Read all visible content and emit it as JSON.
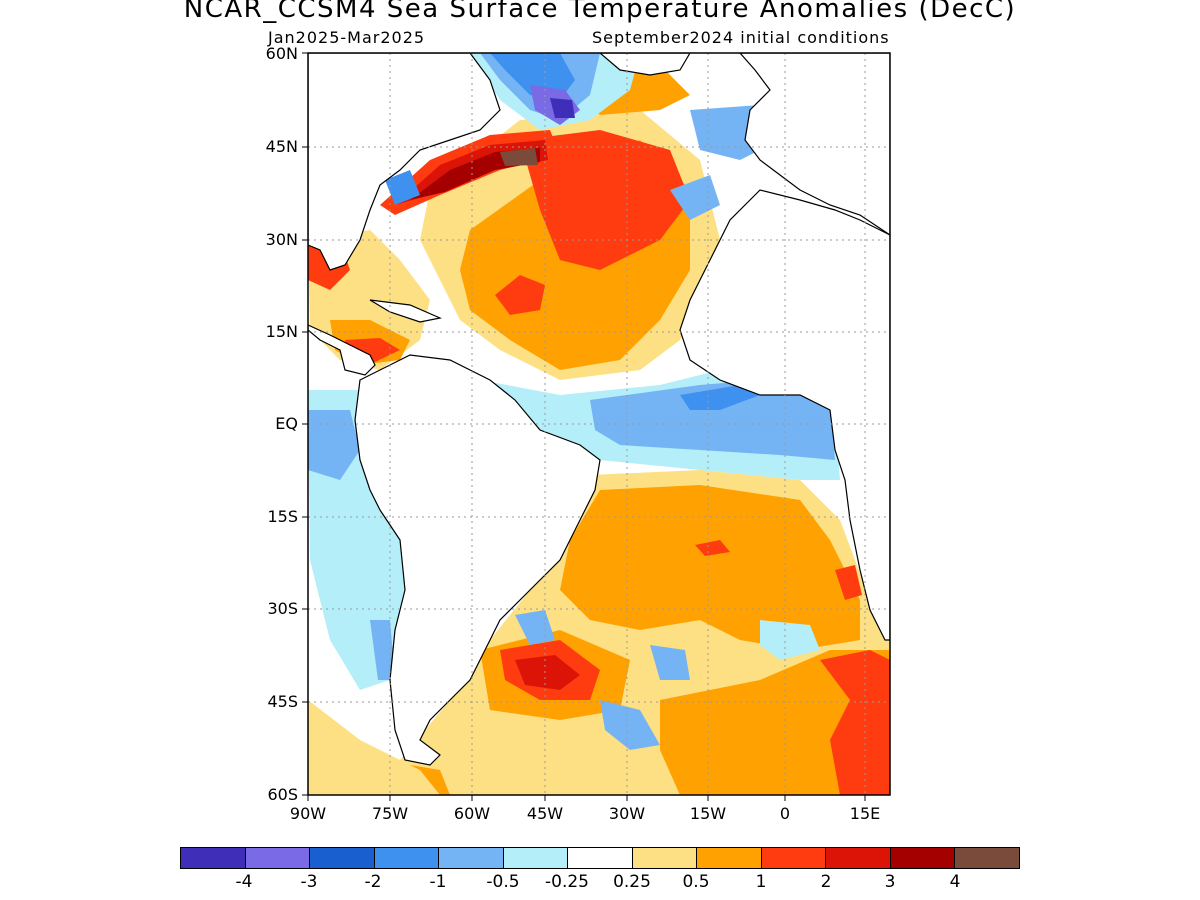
{
  "title": "NCAR_CCSM4 Sea Surface Temperature Anomalies (DecC)",
  "subtitle_left": "Jan2025-Mar2025",
  "subtitle_right": "September2024 initial conditions",
  "lat_labels": [
    "60N",
    "45N",
    "30N",
    "15N",
    "EQ",
    "15S",
    "30S",
    "45S",
    "60S"
  ],
  "lon_labels": [
    "90W",
    "75W",
    "60W",
    "45W",
    "30W",
    "15W",
    "0",
    "15E"
  ],
  "colorbar": {
    "colors": [
      "#3f2fb8",
      "#7a6ae6",
      "#1a5fd0",
      "#3f91f0",
      "#74b4f5",
      "#b4eef8",
      "#ffffff",
      "#fde083",
      "#ffa100",
      "#ff3b10",
      "#dc1408",
      "#a50000",
      "#7a4a3a"
    ],
    "labels": [
      "-4",
      "-3",
      "-2",
      "-1",
      "-0.5",
      "-0.25",
      "0.25",
      "0.5",
      "1",
      "2",
      "3",
      "4"
    ]
  },
  "map": {
    "extent": {
      "lon_min": -90,
      "lon_max": 17,
      "lat_min": -60,
      "lat_max": 60
    },
    "palette": {
      "c1": "#fde083",
      "c2": "#ffa100",
      "c3": "#ff3b10",
      "c4": "#dc1408",
      "c5": "#a50000",
      "c6": "#7a4a3a",
      "n1": "#b4eef8",
      "n2": "#74b4f5",
      "n3": "#3f91f0",
      "n4": "#1a5fd0",
      "n5": "#7a6ae6",
      "n6": "#3f2fb8"
    }
  }
}
